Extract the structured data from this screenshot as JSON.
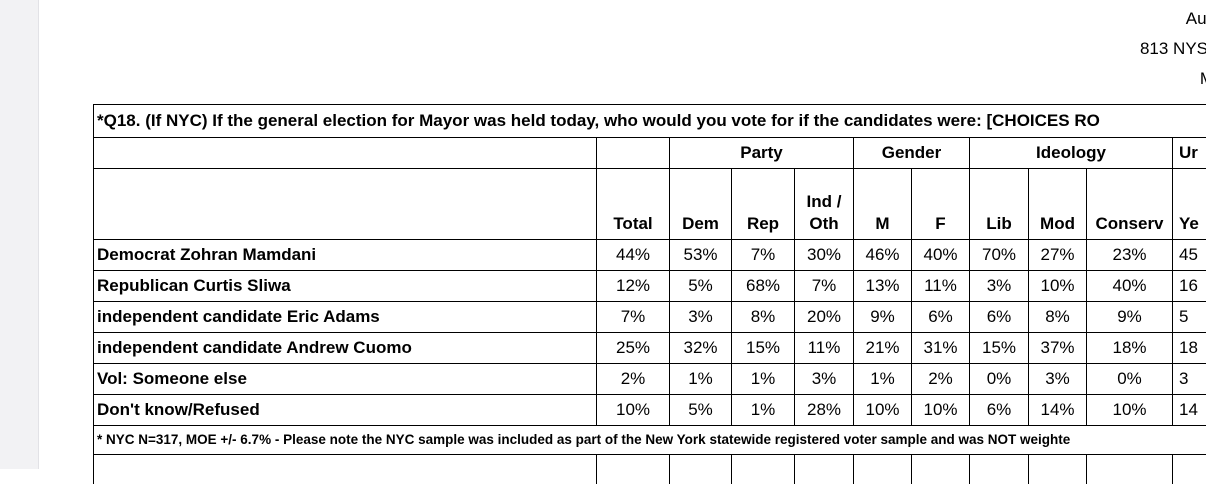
{
  "header": {
    "line1": "Aug",
    "line2": "813 NYS",
    "line3": "M"
  },
  "question": "*Q18. (If NYC) If the general election for Mayor was held today, who would you vote for if the candidates were: [CHOICES RO",
  "groups": {
    "party": "Party",
    "gender": "Gender",
    "ideology": "Ideology",
    "union": "Ur"
  },
  "columns": [
    "Total",
    "Dem",
    "Rep",
    "Ind /\nOth",
    "M",
    "F",
    "Lib",
    "Mod",
    "Conserv",
    "Ye"
  ],
  "rows": [
    {
      "label": "Democrat Zohran Mamdani",
      "values": [
        "44%",
        "53%",
        "7%",
        "30%",
        "46%",
        "40%",
        "70%",
        "27%",
        "23%",
        "45"
      ]
    },
    {
      "label": "Republican Curtis Sliwa",
      "values": [
        "12%",
        "5%",
        "68%",
        "7%",
        "13%",
        "11%",
        "3%",
        "10%",
        "40%",
        "16"
      ]
    },
    {
      "label": "independent candidate Eric Adams",
      "values": [
        "7%",
        "3%",
        "8%",
        "20%",
        "9%",
        "6%",
        "6%",
        "8%",
        "9%",
        "5"
      ]
    },
    {
      "label": "independent candidate Andrew Cuomo",
      "values": [
        "25%",
        "32%",
        "15%",
        "11%",
        "21%",
        "31%",
        "15%",
        "37%",
        "18%",
        "18"
      ]
    },
    {
      "label": "Vol: Someone else",
      "values": [
        "2%",
        "1%",
        "1%",
        "3%",
        "1%",
        "2%",
        "0%",
        "3%",
        "0%",
        "3"
      ]
    },
    {
      "label": "Don't know/Refused",
      "values": [
        "10%",
        "5%",
        "1%",
        "28%",
        "10%",
        "10%",
        "6%",
        "14%",
        "10%",
        "14"
      ]
    }
  ],
  "footnote": "* NYC N=317, MOE +/- 6.7% - Please note the NYC sample was included as part of the New York statewide registered voter sample and was NOT weighte"
}
